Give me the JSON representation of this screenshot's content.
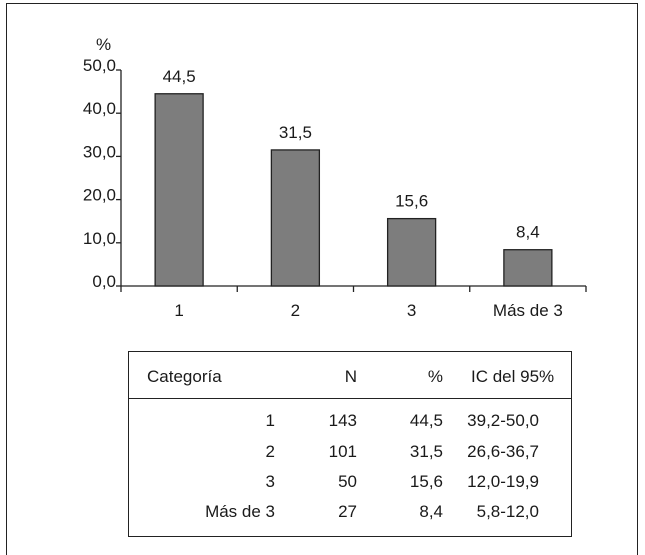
{
  "chart_data": {
    "type": "bar",
    "ylabel": "%",
    "ylim": [
      0,
      50
    ],
    "yticks": [
      "0,0",
      "10,0",
      "20,0",
      "30,0",
      "40,0",
      "50,0"
    ],
    "ytick_values": [
      0,
      10,
      20,
      30,
      40,
      50
    ],
    "categories": [
      "1",
      "2",
      "3",
      "Más de 3"
    ],
    "values": [
      44.5,
      31.5,
      15.6,
      8.4
    ],
    "value_labels": [
      "44,5",
      "31,5",
      "15,6",
      "8,4"
    ],
    "bar_color": "#7d7d7d",
    "grid": false,
    "legend": "none"
  },
  "table": {
    "headers": [
      "Categoría",
      "N",
      "%",
      "IC del 95%"
    ],
    "rows": [
      [
        "1",
        "143",
        "44,5",
        "39,2-50,0"
      ],
      [
        "2",
        "101",
        "31,5",
        "26,6-36,7"
      ],
      [
        "3",
        "50",
        "15,6",
        "12,0-19,9"
      ],
      [
        "Más de 3",
        "27",
        "8,4",
        "5,8-12,0"
      ]
    ]
  }
}
